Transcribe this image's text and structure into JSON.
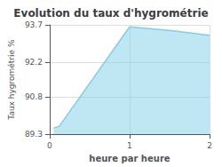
{
  "chart_data": {
    "type": "area",
    "title": "Evolution du taux d'hygrométrie",
    "xlabel": "heure par heure",
    "ylabel": "Taux hygrométrie %",
    "x": [
      0.05,
      0.12,
      1.0,
      1.5,
      2.0
    ],
    "values": [
      89.55,
      89.62,
      93.62,
      93.48,
      93.28
    ],
    "color": "#7ecfe8",
    "xlim": [
      0,
      2
    ],
    "xticks": [
      0,
      1,
      2
    ],
    "ylim": [
      89.3,
      93.7
    ],
    "yticks": [
      89.3,
      90.8,
      92.2,
      93.7
    ],
    "grid": true
  }
}
